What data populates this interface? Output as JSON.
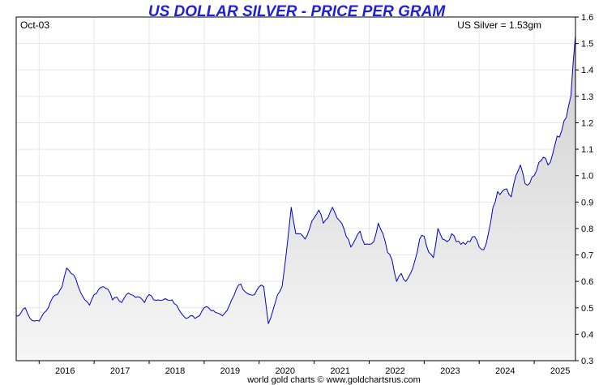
{
  "chart_data": {
    "type": "area",
    "title": "US DOLLAR SILVER - PRICE PER GRAM",
    "date_label": "Oct-03",
    "price_label": "US Silver = 1.53gm",
    "footer": "world gold charts © www.goldchartsrus.com",
    "xlabel": "",
    "ylabel": "",
    "x_ticks": [
      "2016",
      "2017",
      "2018",
      "2019",
      "2020",
      "2021",
      "2022",
      "2023",
      "2024",
      "2025"
    ],
    "y_ticks": [
      "0.3",
      "0.4",
      "0.5",
      "0.6",
      "0.7",
      "0.8",
      "0.9",
      "1.0",
      "1.1",
      "1.2",
      "1.3",
      "1.4",
      "1.5",
      "1.6"
    ],
    "xlim": [
      "2015-08",
      "2025-10"
    ],
    "ylim": [
      0.3,
      1.6
    ],
    "grid": true,
    "line_color": "#0000cc",
    "fill_top_color": "#cfcfcf",
    "fill_bottom_color": "#f6f6f6",
    "series": [
      {
        "x": [
          "2015-08",
          "2015-09",
          "2015-10",
          "2015-11",
          "2015-12",
          "2016-01",
          "2016-02",
          "2016-03",
          "2016-04",
          "2016-05",
          "2016-06",
          "2016-07",
          "2016-08",
          "2016-09",
          "2016-10",
          "2016-11",
          "2016-12",
          "2017-01",
          "2017-02",
          "2017-03",
          "2017-04",
          "2017-05",
          "2017-06",
          "2017-07",
          "2017-08",
          "2017-09",
          "2017-10",
          "2017-11",
          "2017-12",
          "2018-01",
          "2018-02",
          "2018-03",
          "2018-04",
          "2018-05",
          "2018-06",
          "2018-07",
          "2018-08",
          "2018-09",
          "2018-10",
          "2018-11",
          "2018-12",
          "2019-01",
          "2019-02",
          "2019-03",
          "2019-04",
          "2019-05",
          "2019-06",
          "2019-07",
          "2019-08",
          "2019-09",
          "2019-10",
          "2019-11",
          "2019-12",
          "2020-01",
          "2020-02",
          "2020-03",
          "2020-04",
          "2020-05",
          "2020-06",
          "2020-07",
          "2020-08",
          "2020-09",
          "2020-10",
          "2020-11",
          "2020-12",
          "2021-01",
          "2021-02",
          "2021-03",
          "2021-04",
          "2021-05",
          "2021-06",
          "2021-07",
          "2021-08",
          "2021-09",
          "2021-10",
          "2021-11",
          "2021-12",
          "2022-01",
          "2022-02",
          "2022-03",
          "2022-04",
          "2022-05",
          "2022-06",
          "2022-07",
          "2022-08",
          "2022-09",
          "2022-10",
          "2022-11",
          "2022-12",
          "2023-01",
          "2023-02",
          "2023-03",
          "2023-04",
          "2023-05",
          "2023-06",
          "2023-07",
          "2023-08",
          "2023-09",
          "2023-10",
          "2023-11",
          "2023-12",
          "2024-01",
          "2024-02",
          "2024-03",
          "2024-04",
          "2024-05",
          "2024-06",
          "2024-07",
          "2024-08",
          "2024-09",
          "2024-10",
          "2024-11",
          "2024-12",
          "2025-01",
          "2025-02",
          "2025-03",
          "2025-04",
          "2025-05",
          "2025-06",
          "2025-07",
          "2025-08",
          "2025-09",
          "2025-10"
        ],
        "values": [
          0.47,
          0.48,
          0.5,
          0.46,
          0.45,
          0.45,
          0.48,
          0.5,
          0.54,
          0.55,
          0.58,
          0.65,
          0.63,
          0.61,
          0.56,
          0.53,
          0.51,
          0.55,
          0.57,
          0.58,
          0.57,
          0.53,
          0.54,
          0.52,
          0.55,
          0.55,
          0.54,
          0.54,
          0.52,
          0.55,
          0.53,
          0.53,
          0.53,
          0.53,
          0.53,
          0.51,
          0.48,
          0.46,
          0.47,
          0.46,
          0.47,
          0.5,
          0.5,
          0.49,
          0.48,
          0.47,
          0.49,
          0.53,
          0.57,
          0.59,
          0.56,
          0.55,
          0.55,
          0.58,
          0.58,
          0.44,
          0.49,
          0.55,
          0.58,
          0.72,
          0.88,
          0.78,
          0.78,
          0.76,
          0.8,
          0.84,
          0.87,
          0.82,
          0.84,
          0.88,
          0.84,
          0.82,
          0.77,
          0.73,
          0.76,
          0.79,
          0.74,
          0.74,
          0.75,
          0.82,
          0.78,
          0.71,
          0.68,
          0.6,
          0.63,
          0.6,
          0.63,
          0.68,
          0.76,
          0.77,
          0.71,
          0.69,
          0.8,
          0.76,
          0.75,
          0.78,
          0.75,
          0.74,
          0.74,
          0.75,
          0.77,
          0.73,
          0.72,
          0.78,
          0.88,
          0.94,
          0.94,
          0.95,
          0.92,
          1.0,
          1.04,
          0.97,
          0.97,
          1.0,
          1.05,
          1.07,
          1.04,
          1.08,
          1.15,
          1.17,
          1.22,
          1.3,
          1.53
        ],
        "points_per_step": 2
      }
    ]
  }
}
